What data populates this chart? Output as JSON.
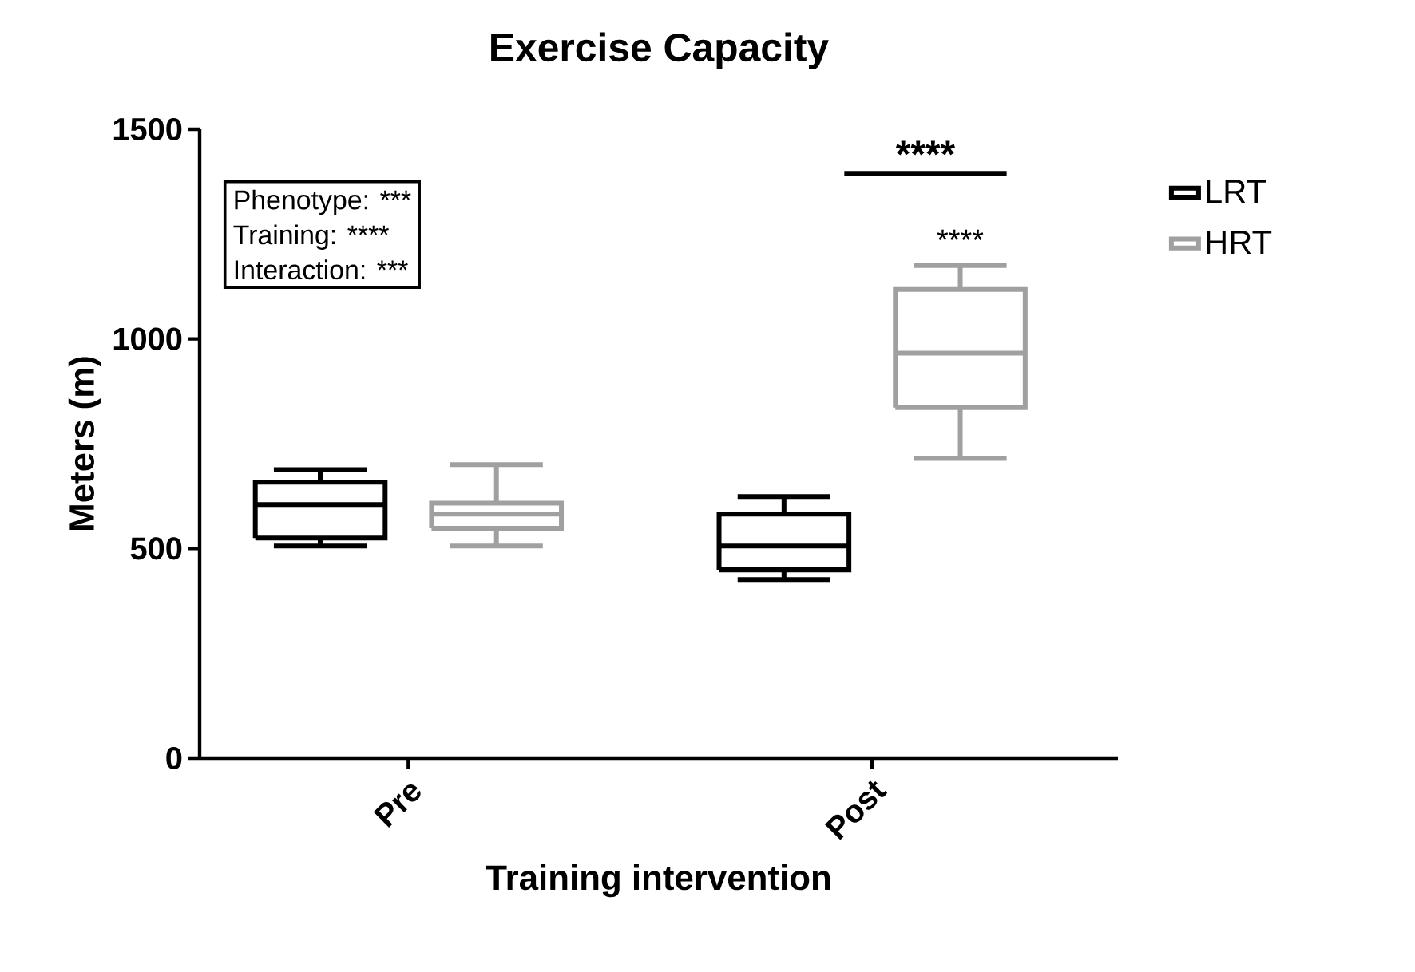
{
  "chart_data": {
    "type": "box",
    "title": "Exercise Capacity",
    "xlabel": "Training intervention",
    "ylabel": "Meters (m)",
    "categories": [
      "Pre",
      "Post"
    ],
    "series": [
      {
        "name": "LRT",
        "color": "#000000",
        "boxes": [
          {
            "low": 506,
            "q1": 525,
            "median": 605,
            "q3": 658,
            "high": 688
          },
          {
            "low": 426,
            "q1": 449,
            "median": 506,
            "q3": 582,
            "high": 624
          }
        ]
      },
      {
        "name": "HRT",
        "color": "#a0a0a0",
        "boxes": [
          {
            "low": 506,
            "q1": 548,
            "median": 582,
            "q3": 608,
            "high": 700
          },
          {
            "low": 715,
            "q1": 836,
            "median": 966,
            "q3": 1118,
            "high": 1175
          }
        ]
      }
    ],
    "ylim": [
      0,
      1500
    ],
    "yticks": [
      0,
      500,
      1000,
      1500
    ],
    "legend": "top right",
    "annotations": [
      "Phenotype: ***",
      "Training: ****",
      "Interaction: ***",
      "****",
      "****"
    ]
  }
}
